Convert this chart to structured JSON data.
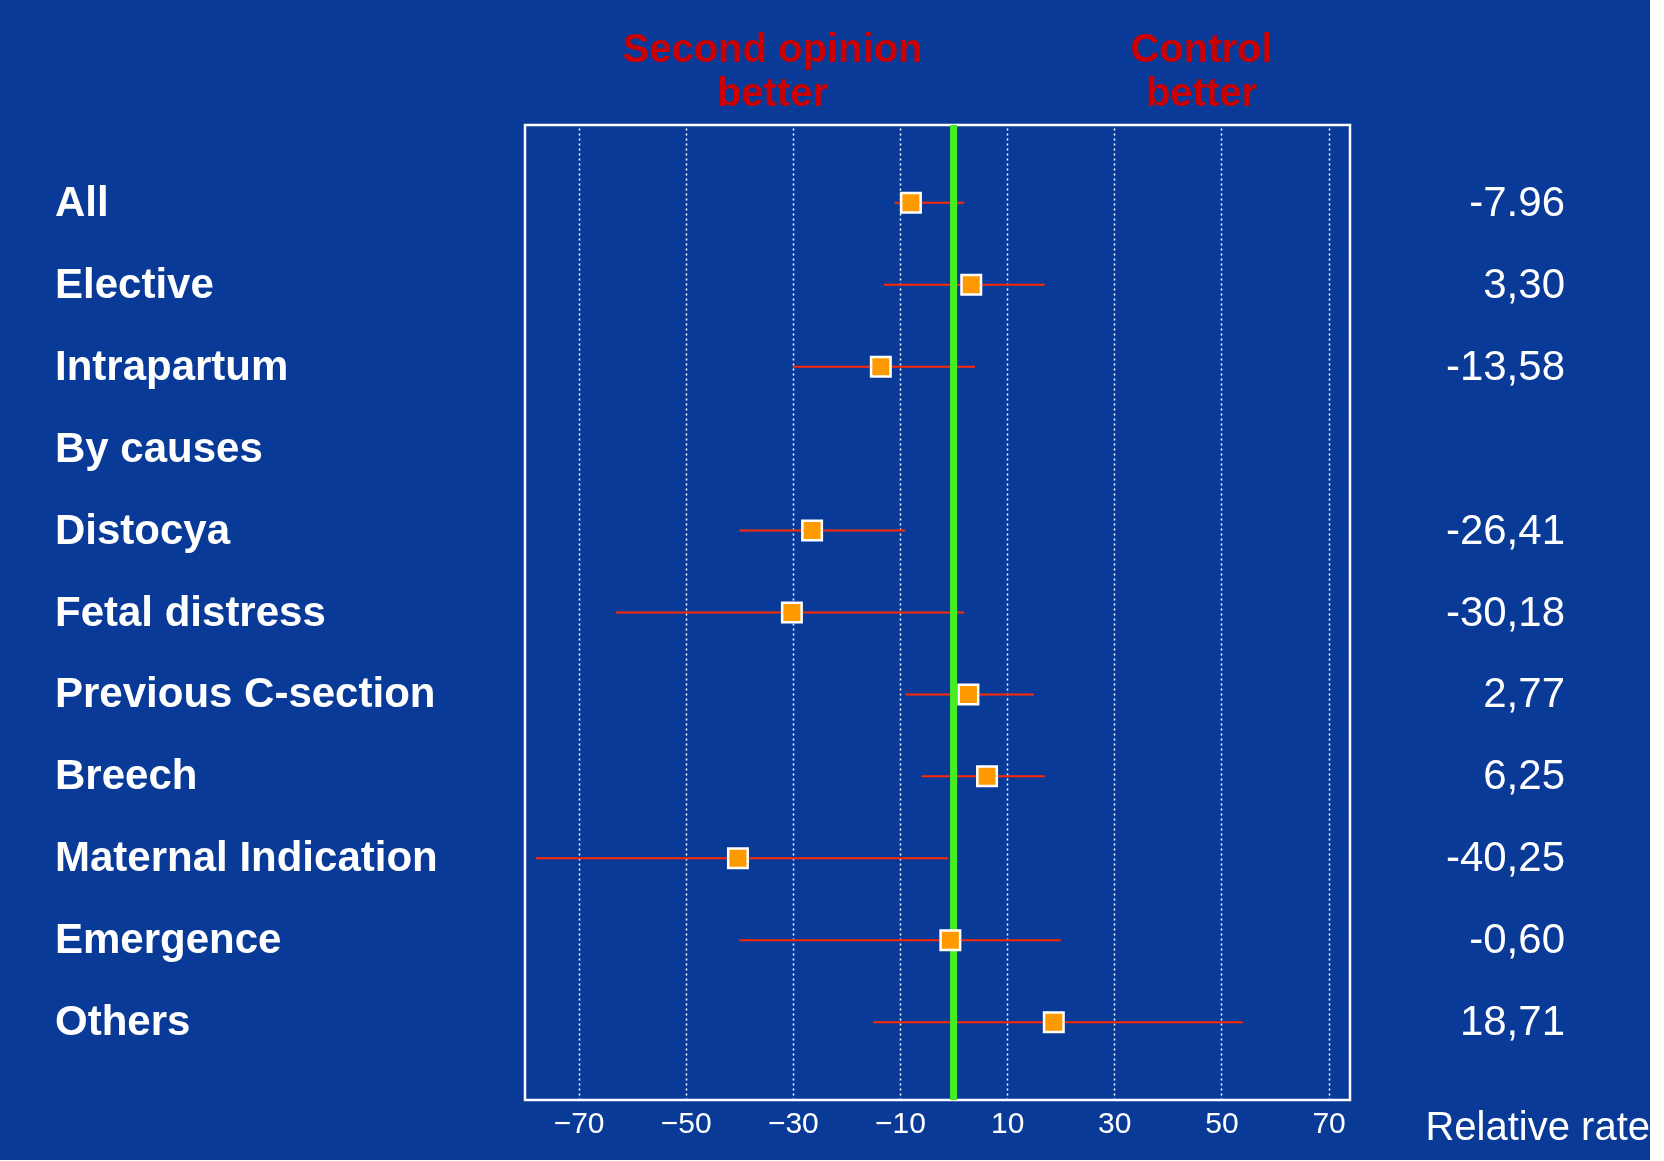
{
  "chart_data": {
    "type": "scatter",
    "orientation": "horizontal",
    "categories": [
      "All",
      "Elective",
      "Intrapartum",
      "By causes",
      "Distocya",
      "Fetal distress",
      "Previous C-section",
      "Breech",
      "Maternal Indication",
      "Emergence",
      "Others"
    ],
    "values": [
      -7.96,
      3.3,
      -13.58,
      null,
      -26.41,
      -30.18,
      2.77,
      6.25,
      -40.25,
      -0.6,
      18.71
    ],
    "errors": [
      [
        -11,
        2
      ],
      [
        -13,
        17
      ],
      [
        -30,
        4
      ],
      null,
      [
        -40,
        -9
      ],
      [
        -63,
        2
      ],
      [
        -9,
        15
      ],
      [
        -6,
        17
      ],
      [
        -78,
        -1
      ],
      [
        -40,
        20
      ],
      [
        -15,
        54
      ]
    ],
    "value_labels": [
      "-7.96",
      "3,30",
      "-13,58",
      null,
      "-26,41",
      "-30,18",
      "2,77",
      "6,25",
      "-40,25",
      "-0,60",
      "18,71"
    ],
    "color": "#ff9900",
    "xlim": [
      -80,
      74
    ],
    "xticks": [
      -70,
      -50,
      -30,
      -10,
      10,
      30,
      50,
      70
    ],
    "grid": "x",
    "marker": "square",
    "ref_lines": [
      {
        "axis": "x",
        "value": 0,
        "color": "#44ee22"
      }
    ],
    "annotations": [
      "Second  opinion better",
      "Control better",
      "Relative rate"
    ]
  }
}
